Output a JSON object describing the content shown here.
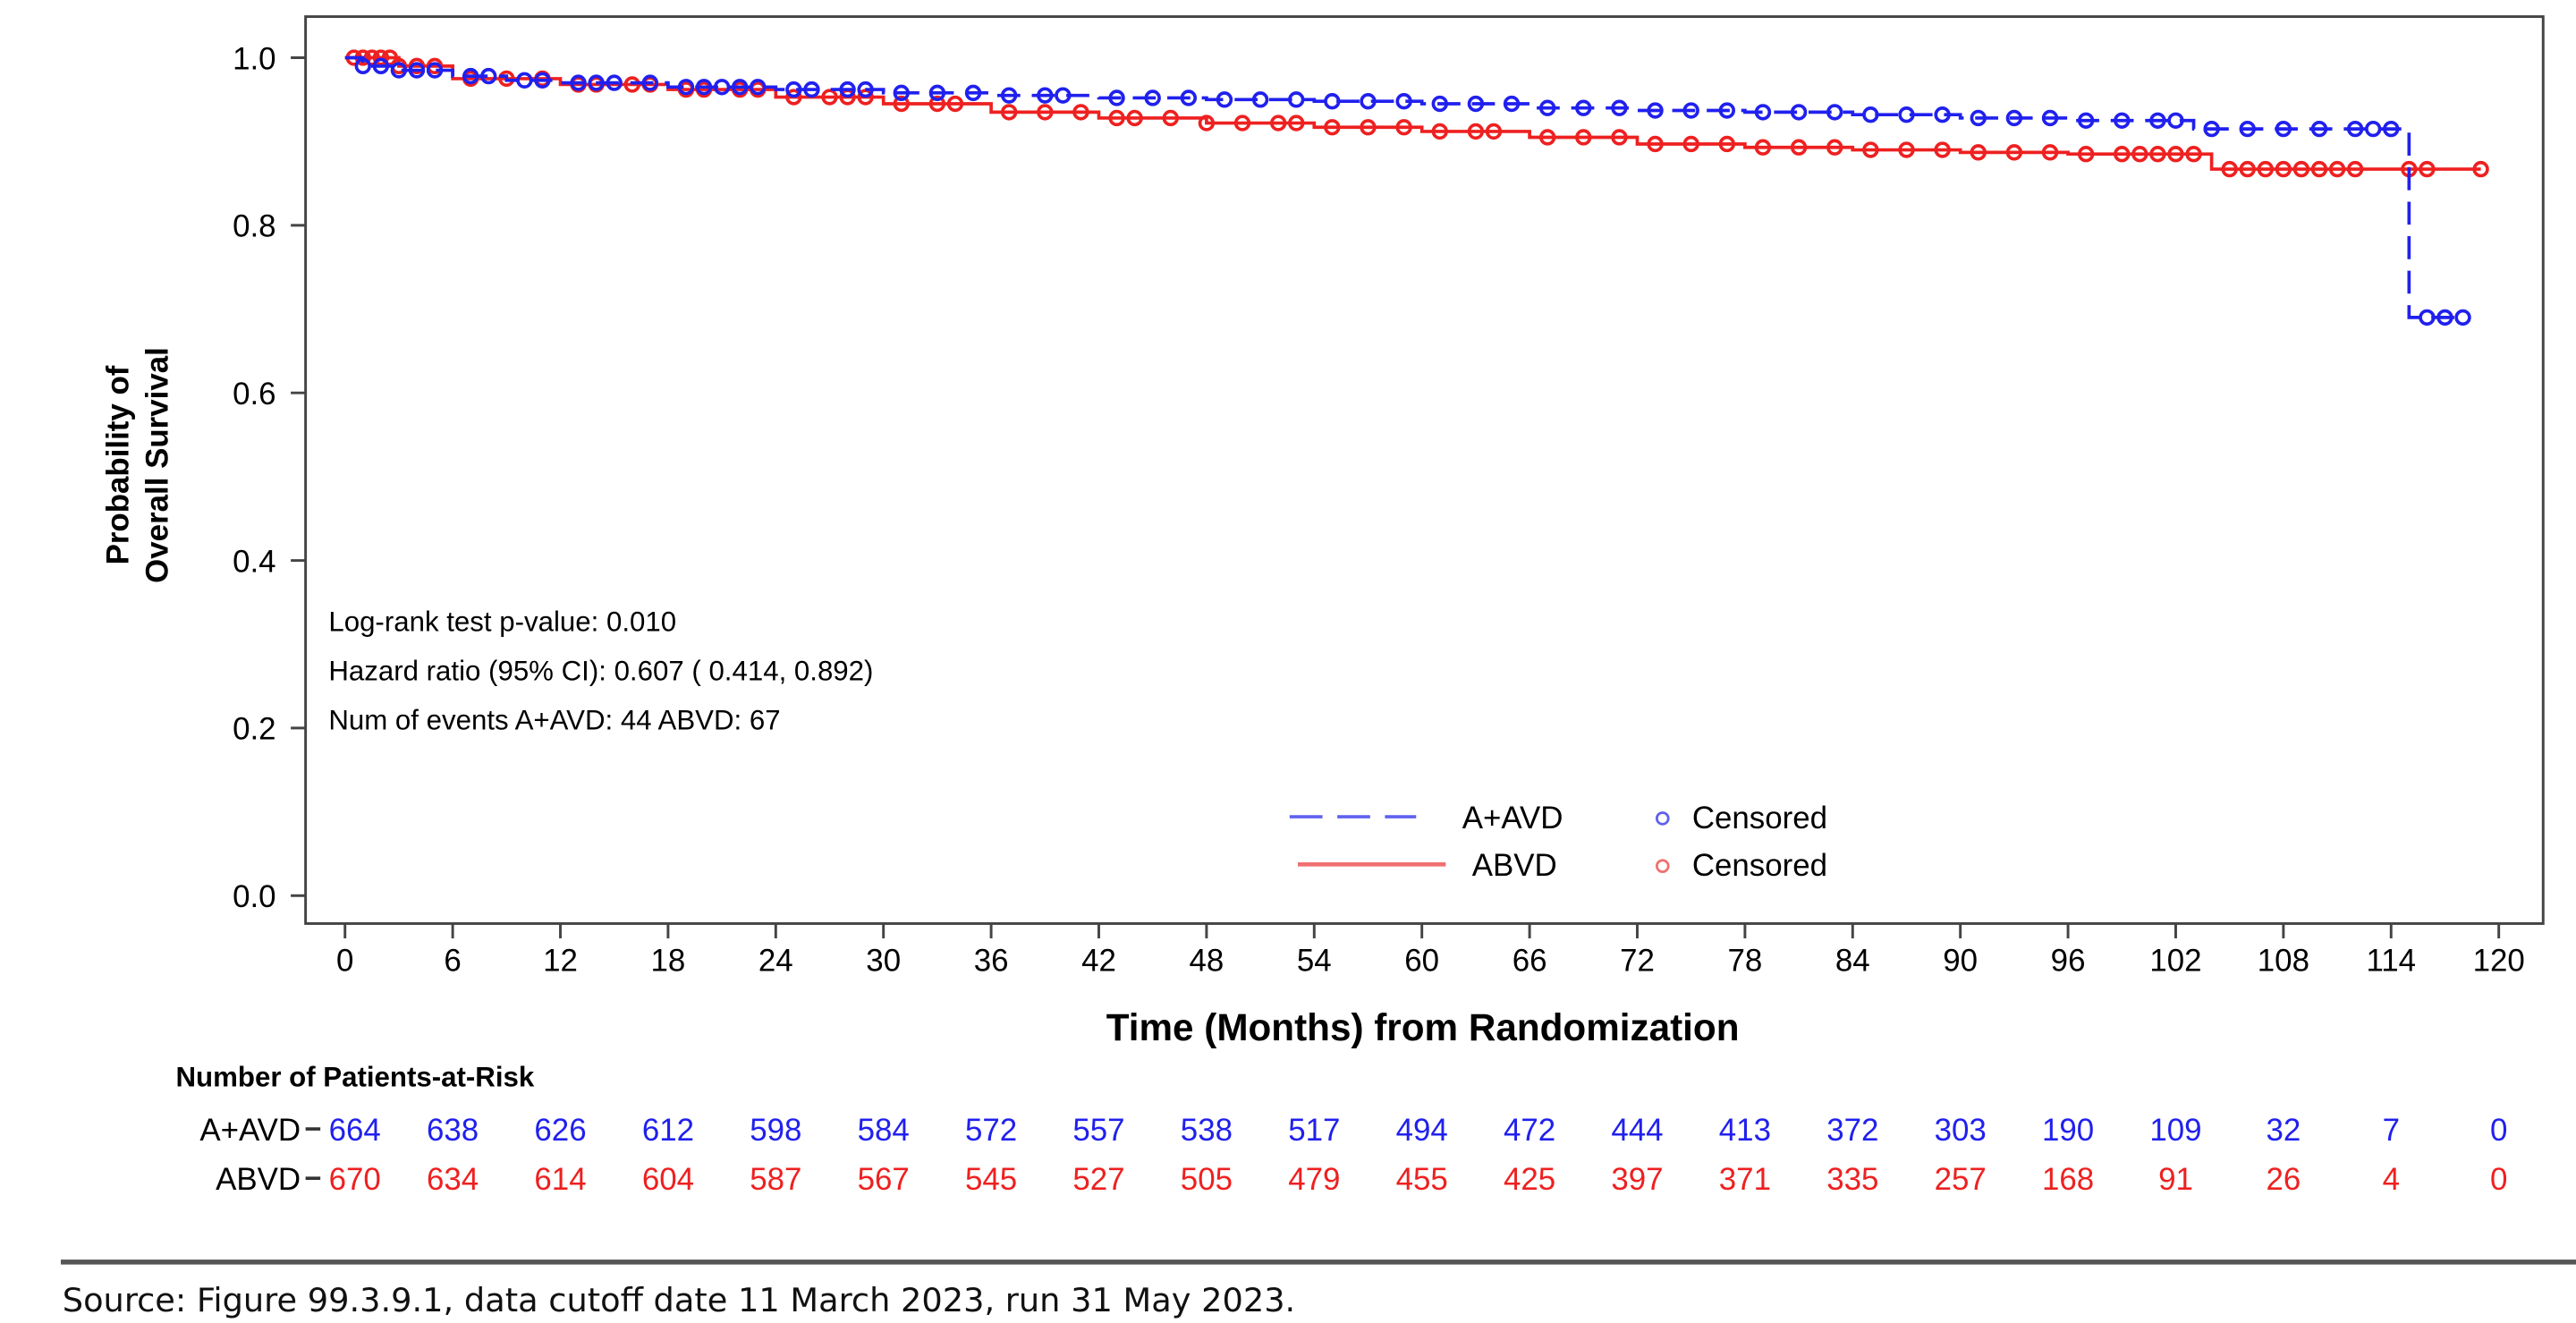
{
  "chart_data": {
    "type": "line",
    "subtype": "kaplan-meier",
    "title": "",
    "xlabel": "Time (Months) from Randomization",
    "ylabel_lines": [
      "Probability of",
      "Overall Survival"
    ],
    "xlim": [
      0,
      120
    ],
    "ylim": [
      0,
      1
    ],
    "x_ticks": [
      0,
      6,
      12,
      18,
      24,
      30,
      36,
      42,
      48,
      54,
      60,
      66,
      72,
      78,
      84,
      90,
      96,
      102,
      108,
      114,
      120
    ],
    "y_ticks": [
      "0.0",
      "0.2",
      "0.4",
      "0.6",
      "0.8",
      "1.0"
    ],
    "grid": false,
    "legend": {
      "placement": "bottom-right inside plot",
      "censored_label": "Censored"
    },
    "annotations": [
      "Log-rank test p-value: 0.010",
      "Hazard ratio (95% CI):  0.607 ( 0.414,  0.892)",
      "Num of events  A+AVD: 44  ABVD: 67"
    ],
    "series": [
      {
        "name": "A+AVD",
        "color": "#2020ee",
        "line_style": "dashed",
        "steps": [
          [
            0,
            1.0
          ],
          [
            1,
            0.99
          ],
          [
            3,
            0.985
          ],
          [
            6,
            0.978
          ],
          [
            9,
            0.973
          ],
          [
            12,
            0.97
          ],
          [
            18,
            0.965
          ],
          [
            24,
            0.962
          ],
          [
            30,
            0.958
          ],
          [
            36,
            0.955
          ],
          [
            42,
            0.952
          ],
          [
            48,
            0.95
          ],
          [
            54,
            0.948
          ],
          [
            60,
            0.945
          ],
          [
            66,
            0.94
          ],
          [
            72,
            0.937
          ],
          [
            78,
            0.935
          ],
          [
            84,
            0.932
          ],
          [
            90,
            0.928
          ],
          [
            96,
            0.925
          ],
          [
            103,
            0.915
          ],
          [
            115,
            0.69
          ],
          [
            118,
            0.69
          ]
        ],
        "censored": [
          1,
          2,
          3,
          4,
          5,
          7,
          8,
          10,
          11,
          13,
          14,
          15,
          17,
          19,
          20,
          21,
          22,
          23,
          25,
          26,
          28,
          29,
          31,
          33,
          35,
          37,
          39,
          40,
          43,
          45,
          47,
          49,
          51,
          53,
          55,
          57,
          59,
          61,
          63,
          65,
          67,
          69,
          71,
          73,
          75,
          77,
          79,
          81,
          83,
          85,
          87,
          89,
          91,
          93,
          95,
          97,
          99,
          101,
          102,
          104,
          106,
          108,
          110,
          112,
          113,
          114,
          116,
          117,
          118
        ]
      },
      {
        "name": "ABVD",
        "color": "#ee2020",
        "line_style": "solid",
        "steps": [
          [
            0,
            1.0
          ],
          [
            3,
            0.99
          ],
          [
            6,
            0.975
          ],
          [
            12,
            0.968
          ],
          [
            18,
            0.962
          ],
          [
            24,
            0.953
          ],
          [
            30,
            0.945
          ],
          [
            36,
            0.935
          ],
          [
            42,
            0.928
          ],
          [
            48,
            0.922
          ],
          [
            54,
            0.917
          ],
          [
            60,
            0.912
          ],
          [
            66,
            0.905
          ],
          [
            72,
            0.897
          ],
          [
            78,
            0.893
          ],
          [
            84,
            0.89
          ],
          [
            90,
            0.887
          ],
          [
            96,
            0.885
          ],
          [
            104,
            0.867
          ],
          [
            119,
            0.867
          ]
        ],
        "censored": [
          0.5,
          1,
          1.5,
          2,
          2.5,
          3,
          4,
          5,
          7,
          9,
          11,
          13,
          14,
          16,
          17,
          19,
          20,
          22,
          23,
          25,
          27,
          28,
          29,
          31,
          33,
          34,
          37,
          39,
          41,
          43,
          44,
          46,
          48,
          50,
          52,
          53,
          55,
          57,
          59,
          61,
          63,
          64,
          67,
          69,
          71,
          73,
          75,
          77,
          79,
          81,
          83,
          85,
          87,
          89,
          91,
          93,
          95,
          97,
          99,
          100,
          101,
          102,
          103,
          105,
          106,
          107,
          108,
          109,
          110,
          111,
          112,
          115,
          116,
          119
        ]
      }
    ],
    "risk_table": {
      "title": "Number of Patients-at-Risk",
      "times": [
        0,
        6,
        12,
        18,
        24,
        30,
        36,
        42,
        48,
        54,
        60,
        66,
        72,
        78,
        84,
        90,
        96,
        102,
        108,
        114,
        120
      ],
      "rows": [
        {
          "label": "A+AVD",
          "color": "#2020ee",
          "values": [
            "664",
            "638",
            "626",
            "612",
            "598",
            "584",
            "572",
            "557",
            "538",
            "517",
            "494",
            "472",
            "444",
            "413",
            "372",
            "303",
            "190",
            "109",
            "32",
            "7",
            "0"
          ]
        },
        {
          "label": "ABVD",
          "color": "#ee2020",
          "values": [
            "670",
            "634",
            "614",
            "604",
            "587",
            "567",
            "545",
            "527",
            "505",
            "479",
            "455",
            "425",
            "397",
            "371",
            "335",
            "257",
            "168",
            "91",
            "26",
            "4",
            "0"
          ]
        }
      ]
    }
  },
  "footer": {
    "source": "Source: Figure 99.3.9.1, data cutoff date 11 March 2023, run 31 May 2023."
  }
}
